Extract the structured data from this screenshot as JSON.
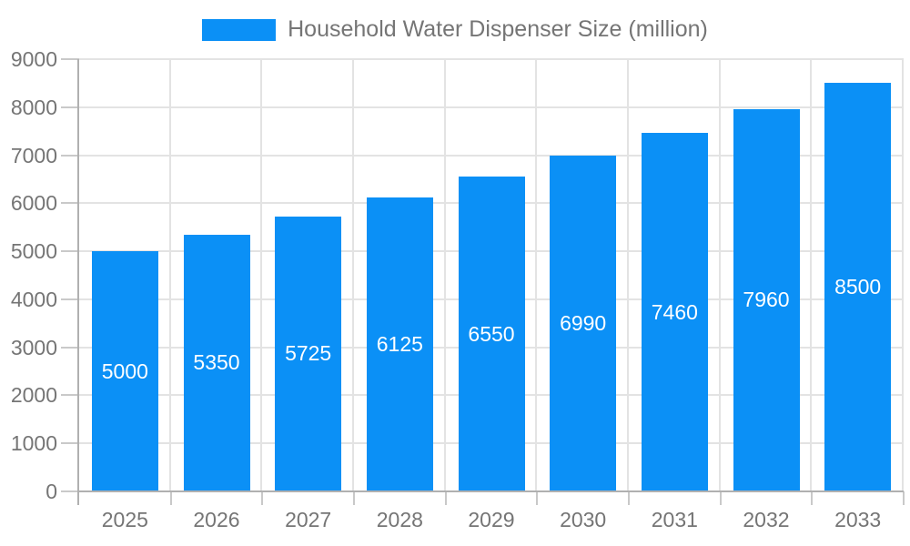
{
  "chart_data": {
    "type": "bar",
    "title": "Household Water Dispenser Size (million)",
    "legend": [
      "Household Water Dispenser Size (million)"
    ],
    "legend_position": "top-center",
    "categories": [
      "2025",
      "2026",
      "2027",
      "2028",
      "2029",
      "2030",
      "2031",
      "2032",
      "2033"
    ],
    "values": [
      5000,
      5350,
      5725,
      6125,
      6550,
      6990,
      7460,
      7960,
      8500
    ],
    "xlabel": "",
    "ylabel": "",
    "ylim": [
      0,
      9000
    ],
    "yticks": [
      0,
      1000,
      2000,
      3000,
      4000,
      5000,
      6000,
      7000,
      8000,
      9000
    ],
    "grid": true,
    "value_labels": "inside-center",
    "colors": {
      "bar": "#0b90f6",
      "axis_text": "#757575",
      "value_label": "#ffffff",
      "gridline": "#e3e3e3",
      "axis_line": "#b0b0b0",
      "tick": "#c9c9c9",
      "background": "#ffffff"
    }
  }
}
